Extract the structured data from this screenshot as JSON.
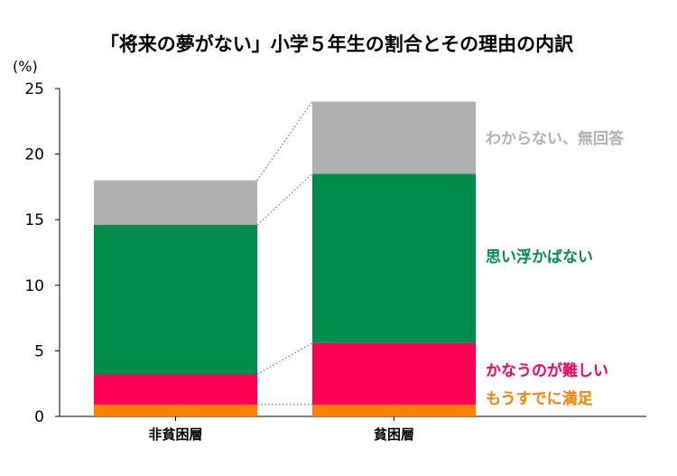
{
  "chart_data": {
    "type": "bar",
    "title": "「将来の夢がない」小学５年生の割合とその理由の内訳",
    "unit": "(%)",
    "ylim": [
      0,
      25
    ],
    "yticks": [
      0,
      5,
      10,
      15,
      20,
      25
    ],
    "categories": [
      "非貧困層",
      "貧困層"
    ],
    "series": [
      {
        "name": "もうすでに満足",
        "color": "#ff7f00",
        "values": [
          0.9,
          0.9
        ]
      },
      {
        "name": "かなうのが難しい",
        "color": "#ff0055",
        "values": [
          2.3,
          4.7
        ]
      },
      {
        "name": "思い浮かばない",
        "color": "#008c4a",
        "values": [
          11.4,
          12.9
        ]
      },
      {
        "name": "わからない、無回答",
        "color": "#b0b0b0",
        "values": [
          3.4,
          5.5
        ]
      }
    ],
    "grid": false,
    "legend": "right (labels beside the second bar)"
  }
}
